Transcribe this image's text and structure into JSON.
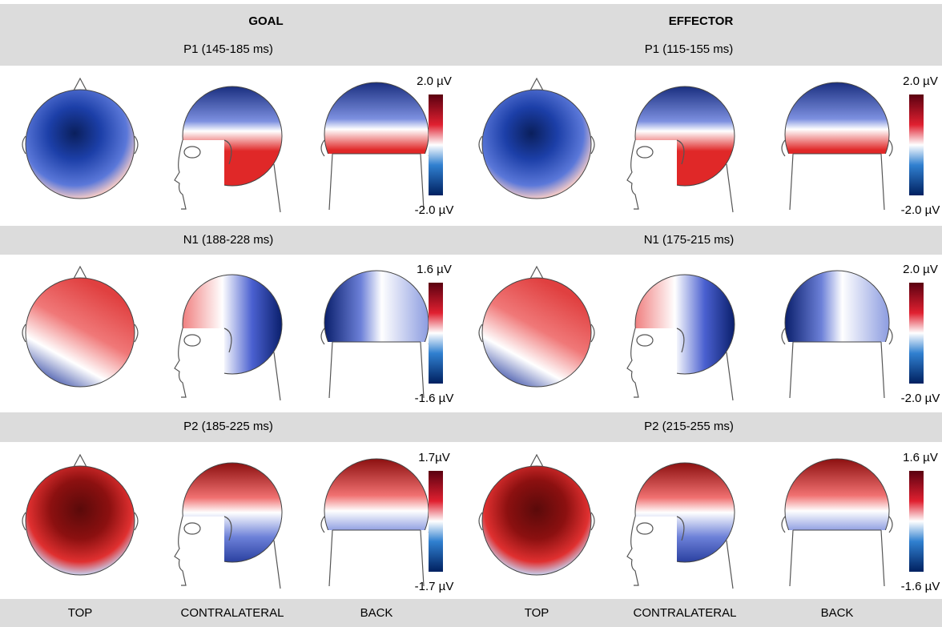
{
  "header": {
    "left": "GOAL",
    "right": "EFFECTOR"
  },
  "rows": [
    {
      "left": {
        "label": "P1 (145-185  ms)",
        "scale_max": "2.0 µV",
        "scale_min": "-2.0 µV"
      },
      "right": {
        "label": "P1 (115-155  ms)",
        "scale_max": "2.0 µV",
        "scale_min": "-2.0 µV"
      }
    },
    {
      "left": {
        "label": "N1 (188-228  ms)",
        "scale_max": "1.6 µV",
        "scale_min": "-1.6 µV"
      },
      "right": {
        "label": "N1 (175-215  ms)",
        "scale_max": "2.0 µV",
        "scale_min": "-2.0 µV"
      }
    },
    {
      "left": {
        "label": "P2 (185-225  ms)",
        "scale_max": "1.7µV",
        "scale_min": "-1.7 µV"
      },
      "right": {
        "label": "P2 (215-255  ms)",
        "scale_max": "1.6 µV",
        "scale_min": "-1.6 µV"
      }
    }
  ],
  "views": [
    "TOP",
    "CONTRALATERAL",
    "BACK",
    "TOP",
    "CONTRALATERAL",
    "BACK"
  ]
}
